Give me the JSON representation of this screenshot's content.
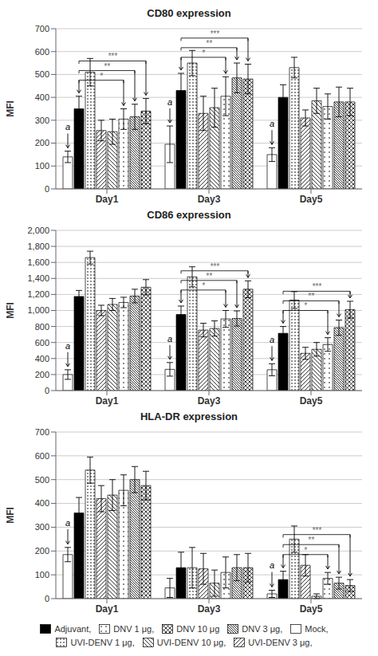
{
  "chart_data": [
    {
      "type": "bar",
      "title": "CD80 expression",
      "ylabel": "MFI",
      "categories": [
        "Day1",
        "Day3",
        "Day5"
      ],
      "ylim": [
        0,
        700
      ],
      "yticks": [
        0,
        100,
        200,
        300,
        400,
        500,
        600,
        700
      ],
      "grid": true,
      "series": [
        {
          "name": "Mock,",
          "color": "white",
          "values": [
            140,
            195,
            150
          ],
          "errors": [
            25,
            80,
            30
          ]
        },
        {
          "name": "Adjuvant,",
          "color": "black",
          "values": [
            350,
            430,
            400
          ],
          "errors": [
            55,
            75,
            55
          ]
        },
        {
          "name": "UVI-DENV 1 μg,",
          "color": "white",
          "values": [
            510,
            550,
            530
          ],
          "errors": [
            60,
            55,
            45
          ]
        },
        {
          "name": "UVI-DENV 3 μg,",
          "color": "white",
          "values": [
            255,
            330,
            310
          ],
          "errors": [
            45,
            75,
            35
          ]
        },
        {
          "name": "UVI-DENV 10 μg,",
          "color": "white",
          "values": [
            250,
            355,
            385
          ],
          "errors": [
            55,
            85,
            55
          ]
        },
        {
          "name": "DNV 1 μg,",
          "color": "white",
          "values": [
            305,
            405,
            360
          ],
          "errors": [
            45,
            85,
            55
          ]
        },
        {
          "name": "DNV 3 μg,",
          "color": "white",
          "values": [
            315,
            485,
            380
          ],
          "errors": [
            55,
            65,
            65
          ]
        },
        {
          "name": "DNV 10 μg",
          "color": "white",
          "values": [
            340,
            480,
            380
          ],
          "errors": [
            55,
            65,
            60
          ]
        }
      ],
      "annotations": [
        {
          "text": "a",
          "category": "Day1",
          "series": "Mock,"
        },
        {
          "text": "a",
          "category": "Day3",
          "series": "Mock,"
        },
        {
          "text": "a",
          "category": "Day5",
          "series": "Mock,"
        },
        {
          "text": "*",
          "category": "Day1",
          "series": "Adjuvant,",
          "to": "DNV 1 μg,"
        },
        {
          "text": "**",
          "category": "Day1",
          "series": "Adjuvant,",
          "to": "DNV 3 μg,"
        },
        {
          "text": "***",
          "category": "Day1",
          "series": "Adjuvant,",
          "to": "DNV 10 μg"
        },
        {
          "text": "*",
          "category": "Day3",
          "series": "Adjuvant,",
          "to": "DNV 1 μg,"
        },
        {
          "text": "**",
          "category": "Day3",
          "series": "Adjuvant,",
          "to": "DNV 3 μg,"
        },
        {
          "text": "***",
          "category": "Day3",
          "series": "Adjuvant,",
          "to": "DNV 10 μg"
        }
      ]
    },
    {
      "type": "bar",
      "title": "CD86 expression",
      "ylabel": "MFI",
      "categories": [
        "Day1",
        "Day3",
        "Day5"
      ],
      "ylim": [
        0,
        2000
      ],
      "yticks": [
        0,
        200,
        400,
        600,
        800,
        {
          "value": 1000,
          "label": "1,000"
        },
        {
          "value": 1200,
          "label": "1,200"
        },
        {
          "value": 1400,
          "label": "1,400"
        },
        {
          "value": 1600,
          "label": "1,600"
        },
        {
          "value": 1800,
          "label": "1,800"
        },
        {
          "value": 2000,
          "label": "2,000"
        }
      ],
      "grid": true,
      "series": [
        {
          "name": "Mock,",
          "color": "white",
          "values": [
            200,
            265,
            260
          ],
          "errors": [
            60,
            85,
            75
          ]
        },
        {
          "name": "Adjuvant,",
          "color": "black",
          "values": [
            1175,
            950,
            715
          ],
          "errors": [
            75,
            105,
            85
          ]
        },
        {
          "name": "UVI-DENV 1 μg,",
          "color": "white",
          "values": [
            1660,
            1420,
            1130
          ],
          "errors": [
            80,
            125,
            105
          ]
        },
        {
          "name": "UVI-DENV 3 μg,",
          "color": "white",
          "values": [
            1000,
            755,
            465
          ],
          "errors": [
            65,
            85,
            75
          ]
        },
        {
          "name": "UVI-DENV 10 μg,",
          "color": "white",
          "values": [
            1075,
            775,
            515
          ],
          "errors": [
            75,
            95,
            85
          ]
        },
        {
          "name": "DNV 1 μg,",
          "color": "white",
          "values": [
            1100,
            895,
            575
          ],
          "errors": [
            65,
            105,
            85
          ]
        },
        {
          "name": "DNV 3 μg,",
          "color": "white",
          "values": [
            1180,
            900,
            785
          ],
          "errors": [
            85,
            95,
            95
          ]
        },
        {
          "name": "DNV 10 μg",
          "color": "white",
          "values": [
            1290,
            1265,
            1010
          ],
          "errors": [
            95,
            105,
            105
          ]
        }
      ],
      "annotations": [
        {
          "text": "a",
          "category": "Day1",
          "series": "Mock,"
        },
        {
          "text": "a",
          "category": "Day3",
          "series": "Mock,"
        },
        {
          "text": "a",
          "category": "Day5",
          "series": "Mock,"
        },
        {
          "text": "*",
          "category": "Day3",
          "series": "Adjuvant,",
          "to": "DNV 1 μg,"
        },
        {
          "text": "**",
          "category": "Day3",
          "series": "Adjuvant,",
          "to": "DNV 3 μg,"
        },
        {
          "text": "***",
          "category": "Day3",
          "series": "Adjuvant,",
          "to": "DNV 10 μg"
        },
        {
          "text": "*",
          "category": "Day5",
          "series": "Adjuvant,",
          "to": "DNV 1 μg,"
        },
        {
          "text": "**",
          "category": "Day5",
          "series": "Adjuvant,",
          "to": "DNV 3 μg,"
        },
        {
          "text": "***",
          "category": "Day5",
          "series": "Adjuvant,",
          "to": "DNV 10 μg"
        }
      ]
    },
    {
      "type": "bar",
      "title": "HLA-DR expression",
      "ylabel": "MFI",
      "categories": [
        "Day1",
        "Day3",
        "Day5"
      ],
      "ylim": [
        0,
        700
      ],
      "yticks": [
        0,
        100,
        200,
        300,
        400,
        500,
        600,
        700
      ],
      "grid": true,
      "legend": "bottom",
      "series": [
        {
          "name": "Mock,",
          "color": "white",
          "values": [
            185,
            45,
            20
          ],
          "errors": [
            30,
            40,
            15
          ]
        },
        {
          "name": "Adjuvant,",
          "color": "black",
          "values": [
            360,
            130,
            80
          ],
          "errors": [
            65,
            65,
            35
          ]
        },
        {
          "name": "UVI-DENV 1 μg,",
          "color": "white",
          "values": [
            540,
            130,
            250
          ],
          "errors": [
            55,
            85,
            55
          ]
        },
        {
          "name": "UVI-DENV 3 μg,",
          "color": "white",
          "values": [
            420,
            125,
            140
          ],
          "errors": [
            55,
            65,
            45
          ]
        },
        {
          "name": "UVI-DENV 10 μg,",
          "color": "white",
          "values": [
            435,
            65,
            10
          ],
          "errors": [
            65,
            55,
            10
          ]
        },
        {
          "name": "DNV 1 μg,",
          "color": "white",
          "values": [
            455,
            110,
            85
          ],
          "errors": [
            65,
            65,
            25
          ]
        },
        {
          "name": "DNV 3 μg,",
          "color": "white",
          "values": [
            500,
            130,
            65
          ],
          "errors": [
            55,
            55,
            25
          ]
        },
        {
          "name": "DNV 10 μg",
          "color": "white",
          "values": [
            475,
            130,
            55
          ],
          "errors": [
            60,
            60,
            25
          ]
        }
      ],
      "annotations": [
        {
          "text": "a",
          "category": "Day1",
          "series": "Mock,"
        },
        {
          "text": "a",
          "category": "Day5",
          "series": "Mock,"
        },
        {
          "text": "*",
          "category": "Day5",
          "series": "Adjuvant,",
          "to": "DNV 1 μg,"
        },
        {
          "text": "**",
          "category": "Day5",
          "series": "Adjuvant,",
          "to": "DNV 3 μg,"
        },
        {
          "text": "***",
          "category": "Day5",
          "series": "Adjuvant,",
          "to": "DNV 10 μg"
        }
      ]
    }
  ]
}
